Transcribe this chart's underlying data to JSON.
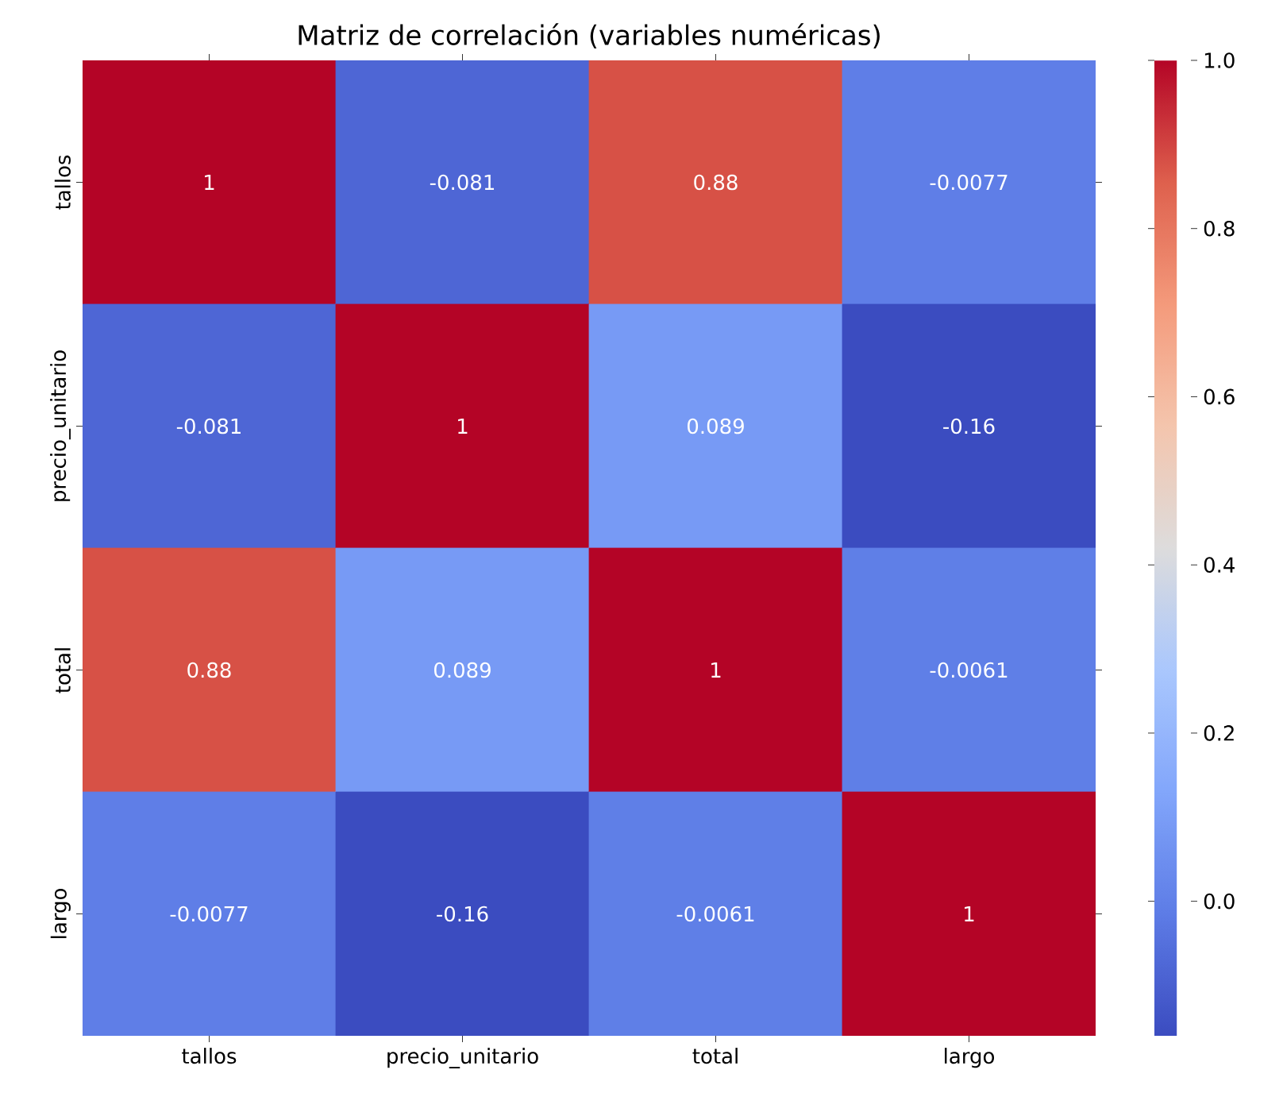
{
  "chart_data": {
    "type": "heatmap",
    "title": "Matriz de correlación (variables numéricas)",
    "categories": [
      "tallos",
      "precio_unitario",
      "total",
      "largo"
    ],
    "y_categories": [
      "tallos",
      "precio_unitario",
      "total",
      "largo"
    ],
    "cells": [
      [
        1,
        -0.081,
        0.88,
        -0.0077
      ],
      [
        -0.081,
        1,
        0.089,
        -0.16
      ],
      [
        0.88,
        0.089,
        1,
        -0.0061
      ],
      [
        -0.0077,
        -0.16,
        -0.0061,
        1
      ]
    ],
    "data_labels": true,
    "clim": [
      -0.16,
      1.0
    ],
    "cticks": [
      {
        "value": 0,
        "label": "0.0"
      },
      0.2,
      0.4,
      0.6,
      0.8,
      {
        "value": 1,
        "label": "1.0"
      }
    ]
  }
}
